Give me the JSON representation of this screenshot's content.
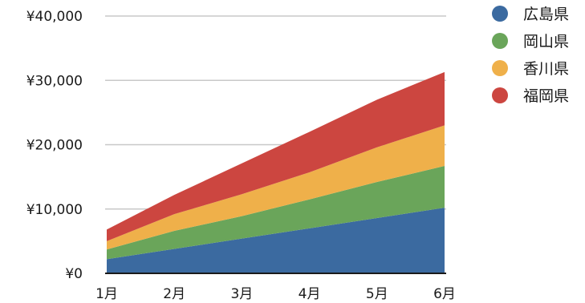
{
  "chart_data": {
    "type": "area",
    "stacked": true,
    "categories": [
      "1月",
      "2月",
      "3月",
      "4月",
      "5月",
      "6月"
    ],
    "series": [
      {
        "name": "広島県",
        "color": "#3b6aa0",
        "values": [
          2200,
          3800,
          5400,
          7000,
          8600,
          10200
        ]
      },
      {
        "name": "岡山県",
        "color": "#6aa55a",
        "values": [
          1500,
          2800,
          3500,
          4500,
          5600,
          6500
        ]
      },
      {
        "name": "香川県",
        "color": "#efb04a",
        "values": [
          1300,
          2600,
          3400,
          4200,
          5400,
          6300
        ]
      },
      {
        "name": "福岡県",
        "color": "#cc4640",
        "values": [
          1800,
          3000,
          4800,
          6300,
          7400,
          8300
        ]
      }
    ],
    "ylim": [
      0,
      40000
    ],
    "yticks": [
      {
        "value": 0,
        "label": "¥0"
      },
      {
        "value": 10000,
        "label": "¥10,000"
      },
      {
        "value": 20000,
        "label": "¥20,000"
      },
      {
        "value": 30000,
        "label": "¥30,000"
      },
      {
        "value": 40000,
        "label": "¥40,000"
      }
    ],
    "grid": true,
    "legend": "right"
  }
}
